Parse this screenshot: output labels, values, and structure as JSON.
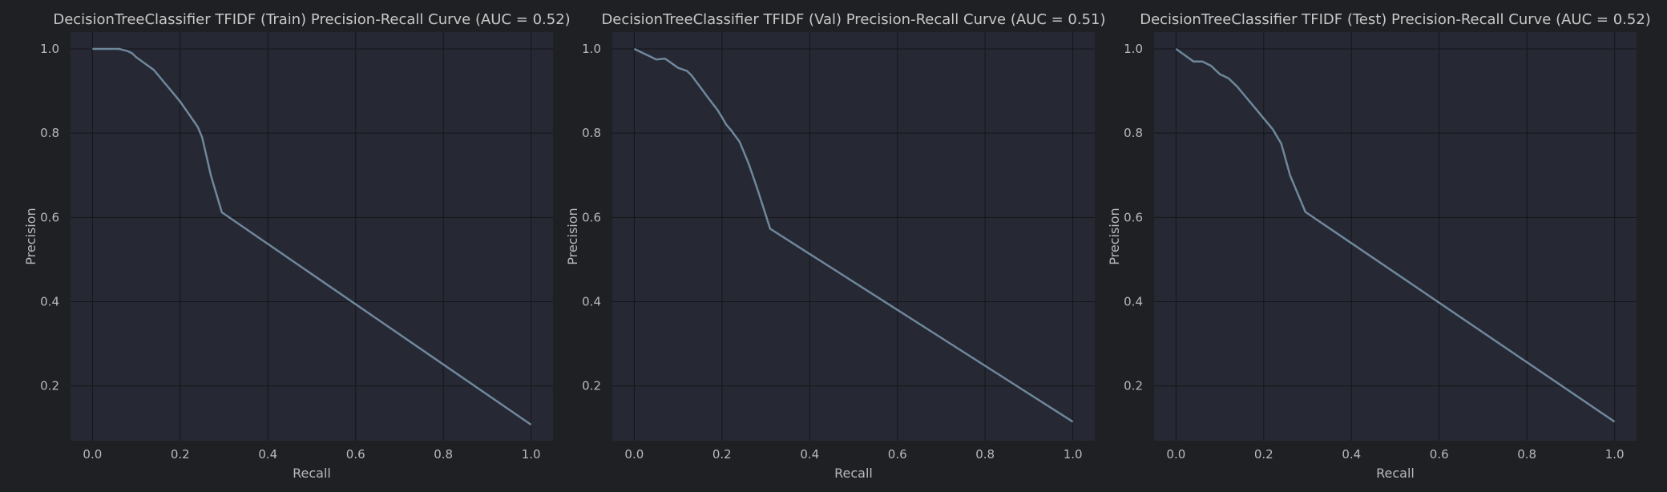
{
  "colors": {
    "figure_bg": "#1f2024",
    "axes_bg": "#262833",
    "curve": "#6f879c"
  },
  "chart_data": [
    {
      "type": "line",
      "title": "DecisionTreeClassifier TFIDF (Train) Precision-Recall Curve (AUC = 0.52)",
      "xlabel": "Recall",
      "ylabel": "Precision",
      "xlim": [
        -0.05,
        1.05
      ],
      "ylim": [
        0.07,
        1.04
      ],
      "xticks": [
        0.0,
        0.2,
        0.4,
        0.6,
        0.8,
        1.0
      ],
      "xtick_labels": [
        "0.0",
        "0.2",
        "0.4",
        "0.6",
        "0.8",
        "1.0"
      ],
      "yticks": [
        0.2,
        0.4,
        0.6,
        0.8,
        1.0
      ],
      "ytick_labels": [
        "0.2",
        "0.4",
        "0.6",
        "0.8",
        "1.0"
      ],
      "grid": true,
      "series": [
        {
          "x": [
            0.0,
            0.02,
            0.04,
            0.06,
            0.08,
            0.09,
            0.1,
            0.12,
            0.14,
            0.16,
            0.18,
            0.2,
            0.22,
            0.24,
            0.25,
            0.26,
            0.27,
            0.295,
            1.0
          ],
          "y": [
            1.0,
            1.0,
            1.0,
            1.0,
            0.995,
            0.99,
            0.98,
            0.965,
            0.95,
            0.925,
            0.9,
            0.875,
            0.845,
            0.815,
            0.79,
            0.745,
            0.7,
            0.612,
            0.108
          ]
        }
      ]
    },
    {
      "type": "line",
      "title": "DecisionTreeClassifier TFIDF (Val) Precision-Recall Curve (AUC = 0.51)",
      "xlabel": "Recall",
      "ylabel": "Precision",
      "xlim": [
        -0.05,
        1.05
      ],
      "ylim": [
        0.07,
        1.04
      ],
      "xticks": [
        0.0,
        0.2,
        0.4,
        0.6,
        0.8,
        1.0
      ],
      "xtick_labels": [
        "0.0",
        "0.2",
        "0.4",
        "0.6",
        "0.8",
        "1.0"
      ],
      "yticks": [
        0.2,
        0.4,
        0.6,
        0.8,
        1.0
      ],
      "ytick_labels": [
        "0.2",
        "0.4",
        "0.6",
        "0.8",
        "1.0"
      ],
      "grid": true,
      "series": [
        {
          "x": [
            0.0,
            0.02,
            0.04,
            0.05,
            0.07,
            0.08,
            0.1,
            0.12,
            0.13,
            0.15,
            0.17,
            0.19,
            0.2,
            0.21,
            0.22,
            0.24,
            0.26,
            0.28,
            0.31,
            1.0
          ],
          "y": [
            1.0,
            0.99,
            0.98,
            0.975,
            0.977,
            0.97,
            0.955,
            0.948,
            0.938,
            0.91,
            0.882,
            0.855,
            0.838,
            0.82,
            0.808,
            0.78,
            0.73,
            0.67,
            0.573,
            0.115
          ]
        }
      ]
    },
    {
      "type": "line",
      "title": "DecisionTreeClassifier TFIDF (Test) Precision-Recall Curve (AUC = 0.52)",
      "xlabel": "Recall",
      "ylabel": "Precision",
      "xlim": [
        -0.05,
        1.05
      ],
      "ylim": [
        0.07,
        1.04
      ],
      "xticks": [
        0.0,
        0.2,
        0.4,
        0.6,
        0.8,
        1.0
      ],
      "xtick_labels": [
        "0.0",
        "0.2",
        "0.4",
        "0.6",
        "0.8",
        "1.0"
      ],
      "yticks": [
        0.2,
        0.4,
        0.6,
        0.8,
        1.0
      ],
      "ytick_labels": [
        "0.2",
        "0.4",
        "0.6",
        "0.8",
        "1.0"
      ],
      "grid": true,
      "series": [
        {
          "x": [
            0.0,
            0.02,
            0.04,
            0.06,
            0.08,
            0.1,
            0.12,
            0.14,
            0.16,
            0.18,
            0.2,
            0.22,
            0.24,
            0.26,
            0.295,
            1.0
          ],
          "y": [
            1.0,
            0.985,
            0.97,
            0.97,
            0.96,
            0.94,
            0.93,
            0.91,
            0.885,
            0.86,
            0.835,
            0.81,
            0.775,
            0.7,
            0.613,
            0.115
          ]
        }
      ]
    }
  ]
}
